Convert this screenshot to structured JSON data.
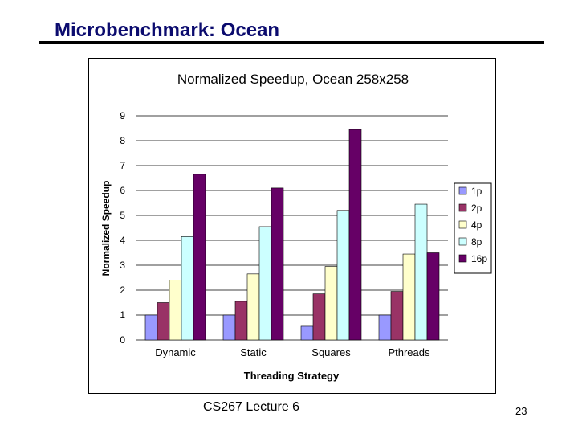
{
  "slide": {
    "title": "Microbenchmark: Ocean",
    "footer": "CS267 Lecture 6",
    "page_number": "23"
  },
  "chart_data": {
    "type": "bar",
    "title": "Normalized Speedup, Ocean 258x258",
    "xlabel": "Threading Strategy",
    "ylabel": "Normalized Speedup",
    "ylim": [
      0,
      9
    ],
    "yticks": [
      "0",
      "1",
      "2",
      "3",
      "4",
      "5",
      "6",
      "7",
      "8",
      "9"
    ],
    "categories": [
      "Dynamic",
      "Static",
      "Squares",
      "Pthreads"
    ],
    "series": [
      {
        "name": "1p",
        "color": "#9999ff",
        "values": [
          1.0,
          1.0,
          0.55,
          1.0
        ]
      },
      {
        "name": "2p",
        "color": "#993366",
        "values": [
          1.5,
          1.55,
          1.85,
          1.95
        ]
      },
      {
        "name": "4p",
        "color": "#ffffcc",
        "values": [
          2.4,
          2.65,
          2.95,
          3.45
        ]
      },
      {
        "name": "8p",
        "color": "#ccffff",
        "values": [
          4.15,
          4.55,
          5.2,
          5.45
        ]
      },
      {
        "name": "16p",
        "color": "#660066",
        "values": [
          6.65,
          6.1,
          8.45,
          3.5
        ]
      }
    ],
    "grid": true,
    "legend_position": "right"
  }
}
